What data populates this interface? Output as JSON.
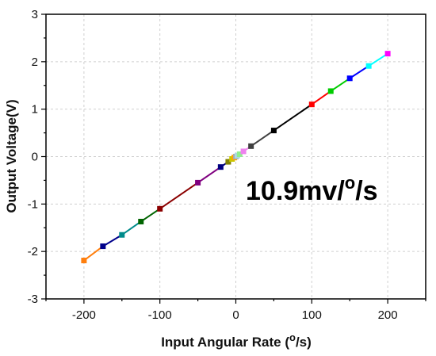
{
  "chart_data": {
    "type": "line",
    "title": "",
    "xlabel": {
      "pre": "Input Angular Rate (",
      "sup": "o",
      "post": "/s)"
    },
    "ylabel": "Output Voltage(V)",
    "annotation": {
      "pre": "10.9mv/",
      "sup": "o",
      "post": "/s"
    },
    "xlim": [
      -250,
      250
    ],
    "ylim": [
      -3,
      3
    ],
    "xticks": [
      -200,
      -100,
      0,
      100,
      200
    ],
    "xtick_labels": [
      "-200",
      "-100",
      "0",
      "100",
      "200"
    ],
    "yticks": [
      -3,
      -2,
      -1,
      0,
      1,
      2,
      3
    ],
    "ytick_labels": [
      "-3",
      "-2",
      "-1",
      "0",
      "1",
      "2",
      "3"
    ],
    "grid": true,
    "points": [
      {
        "x": -200,
        "y": -2.19,
        "color": "#ff7f0e"
      },
      {
        "x": -175,
        "y": -1.89,
        "color": "#00008b"
      },
      {
        "x": -150,
        "y": -1.65,
        "color": "#008b8b"
      },
      {
        "x": -125,
        "y": -1.37,
        "color": "#006400"
      },
      {
        "x": -100,
        "y": -1.1,
        "color": "#8b0000"
      },
      {
        "x": -50,
        "y": -0.55,
        "color": "#800080"
      },
      {
        "x": -20,
        "y": -0.22,
        "color": "#000080"
      },
      {
        "x": -10,
        "y": -0.11,
        "color": "#808000"
      },
      {
        "x": -5,
        "y": -0.05,
        "color": "#c8c800"
      },
      {
        "x": -2,
        "y": -0.02,
        "color": "#ffa500"
      },
      {
        "x": 0,
        "y": 0.0,
        "color": "#aaaaaa"
      },
      {
        "x": 2,
        "y": 0.02,
        "color": "#add8e6"
      },
      {
        "x": 5,
        "y": 0.05,
        "color": "#90ee90"
      },
      {
        "x": 10,
        "y": 0.11,
        "color": "#ee82ee"
      },
      {
        "x": 20,
        "y": 0.22,
        "color": "#404040"
      },
      {
        "x": 50,
        "y": 0.55,
        "color": "#000000"
      },
      {
        "x": 100,
        "y": 1.1,
        "color": "#ff0000"
      },
      {
        "x": 125,
        "y": 1.38,
        "color": "#00cc00"
      },
      {
        "x": 150,
        "y": 1.65,
        "color": "#0000ff"
      },
      {
        "x": 175,
        "y": 1.91,
        "color": "#00ffff"
      },
      {
        "x": 200,
        "y": 2.17,
        "color": "#ff00ff"
      }
    ]
  }
}
